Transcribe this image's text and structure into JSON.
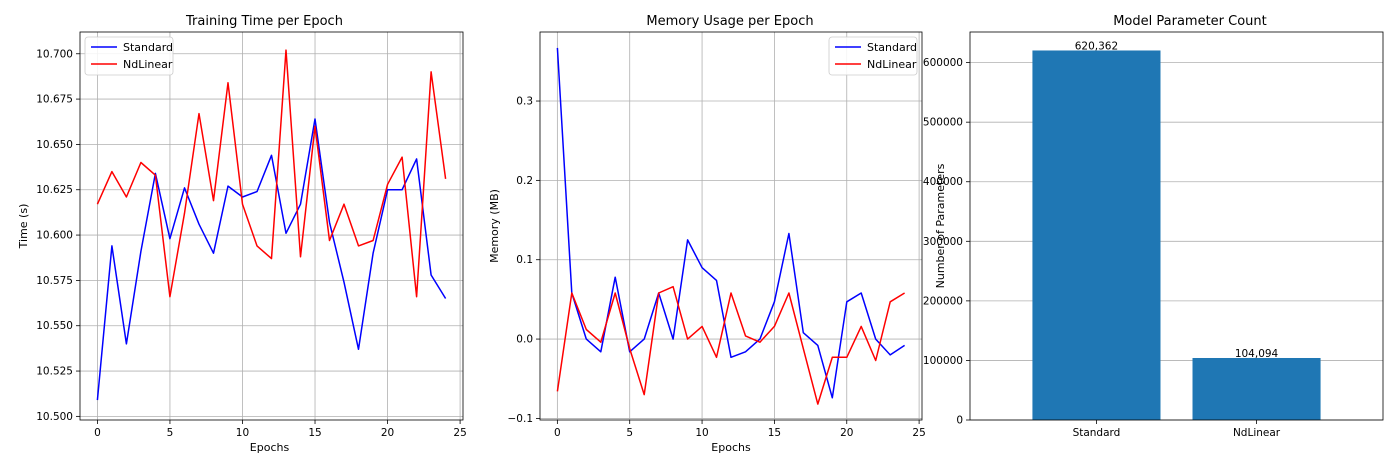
{
  "chart_data": [
    {
      "type": "line",
      "title": "Training Time per Epoch",
      "xlabel": "Epochs",
      "ylabel": "Time (s)",
      "xlim": [
        -1.2,
        25.2
      ],
      "ylim": [
        10.498,
        10.712
      ],
      "xticks": [
        0,
        5,
        10,
        15,
        20,
        25
      ],
      "yticks": [
        10.5,
        10.525,
        10.55,
        10.575,
        10.6,
        10.625,
        10.65,
        10.675,
        10.7
      ],
      "ytick_labels": [
        "10.500",
        "10.525",
        "10.550",
        "10.575",
        "10.600",
        "10.625",
        "10.650",
        "10.675",
        "10.700"
      ],
      "grid": true,
      "legend": "top-left",
      "x": [
        0,
        1,
        2,
        3,
        4,
        5,
        6,
        7,
        8,
        9,
        10,
        11,
        12,
        13,
        14,
        15,
        16,
        17,
        18,
        19,
        20,
        21,
        22,
        23,
        24
      ],
      "series": [
        {
          "name": "Standard",
          "color": "#0000ff",
          "values": [
            10.509,
            10.594,
            10.54,
            10.591,
            10.634,
            10.598,
            10.626,
            10.606,
            10.59,
            10.627,
            10.621,
            10.624,
            10.644,
            10.601,
            10.617,
            10.664,
            10.607,
            10.574,
            10.537,
            10.59,
            10.625,
            10.625,
            10.642,
            10.578,
            10.565
          ]
        },
        {
          "name": "NdLinear",
          "color": "#ff0000",
          "values": [
            10.617,
            10.635,
            10.621,
            10.64,
            10.633,
            10.566,
            10.612,
            10.667,
            10.619,
            10.684,
            10.617,
            10.594,
            10.587,
            10.702,
            10.588,
            10.66,
            10.597,
            10.617,
            10.594,
            10.597,
            10.628,
            10.643,
            10.566,
            10.69,
            10.631
          ]
        }
      ]
    },
    {
      "type": "line",
      "title": "Memory Usage per Epoch",
      "xlabel": "Epochs",
      "ylabel": "Memory (MB)",
      "xlim": [
        -1.2,
        25.2
      ],
      "ylim": [
        -0.102,
        0.387
      ],
      "xticks": [
        0,
        5,
        10,
        15,
        20,
        25
      ],
      "yticks": [
        -0.1,
        0.0,
        0.1,
        0.2,
        0.3
      ],
      "ytick_labels": [
        "−0.1",
        "0.0",
        "0.1",
        "0.2",
        "0.3"
      ],
      "grid": true,
      "legend": "top-right",
      "x": [
        0,
        1,
        2,
        3,
        4,
        5,
        6,
        7,
        8,
        9,
        10,
        11,
        12,
        13,
        14,
        15,
        16,
        17,
        18,
        19,
        20,
        21,
        22,
        23,
        24
      ],
      "series": [
        {
          "name": "Standard",
          "color": "#0000ff",
          "values": [
            0.367,
            0.058,
            0.0,
            -0.016,
            0.078,
            -0.016,
            0.0,
            0.058,
            0.0,
            0.125,
            0.09,
            0.074,
            -0.023,
            -0.016,
            0.0,
            0.047,
            0.133,
            0.008,
            -0.008,
            -0.074,
            0.047,
            0.058,
            0.0,
            -0.02,
            -0.008
          ]
        },
        {
          "name": "NdLinear",
          "color": "#ff0000",
          "values": [
            -0.066,
            0.058,
            0.012,
            -0.004,
            0.058,
            -0.012,
            -0.07,
            0.058,
            0.066,
            0.0,
            0.016,
            -0.023,
            0.058,
            0.004,
            -0.004,
            0.016,
            0.058,
            -0.012,
            -0.082,
            -0.023,
            -0.023,
            0.016,
            -0.027,
            0.047,
            0.058
          ]
        }
      ]
    },
    {
      "type": "bar",
      "title": "Model Parameter Count",
      "xlabel": "",
      "ylabel": "Number of Parameters",
      "categories": [
        "Standard",
        "NdLinear"
      ],
      "values": [
        620362,
        104094
      ],
      "value_labels": [
        "620,362",
        "104,094"
      ],
      "ylim": [
        0,
        651380
      ],
      "yticks": [
        0,
        100000,
        200000,
        300000,
        400000,
        500000,
        600000
      ],
      "ytick_labels": [
        "0",
        "100000",
        "200000",
        "300000",
        "400000",
        "500000",
        "600000"
      ],
      "grid": "y",
      "bar_color": "#1f77b4"
    }
  ]
}
